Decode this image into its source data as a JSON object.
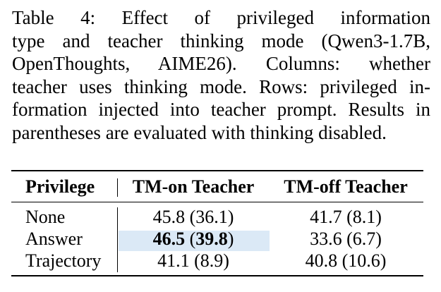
{
  "caption": {
    "lines": [
      "Table 4:  Effect of privileged information",
      "type and teacher thinking mode (Qwen3-1.7B,",
      "OpenThoughts, AIME26).  Columns: whether",
      "teacher uses thinking mode. Rows: privileged in-",
      "formation injected into teacher prompt. Results in",
      "parentheses are evaluated with thinking disabled."
    ]
  },
  "table": {
    "headers": [
      "Privilege",
      "TM-on Teacher",
      "TM-off Teacher"
    ],
    "rows": [
      {
        "privilege": "None",
        "tm_on": {
          "main": "45.8",
          "paren": "36.1"
        },
        "tm_off": {
          "main": "41.7",
          "paren": "8.1"
        }
      },
      {
        "privilege": "Answer",
        "tm_on": {
          "main": "46.5",
          "paren": "39.8",
          "bold": true,
          "highlight": true
        },
        "tm_off": {
          "main": "33.6",
          "paren": "6.7"
        }
      },
      {
        "privilege": "Trajectory",
        "tm_on": {
          "main": "41.1",
          "paren": "8.9"
        },
        "tm_off": {
          "main": "40.8",
          "paren": "10.6"
        }
      }
    ],
    "highlight_color": "#dbe9f6"
  }
}
